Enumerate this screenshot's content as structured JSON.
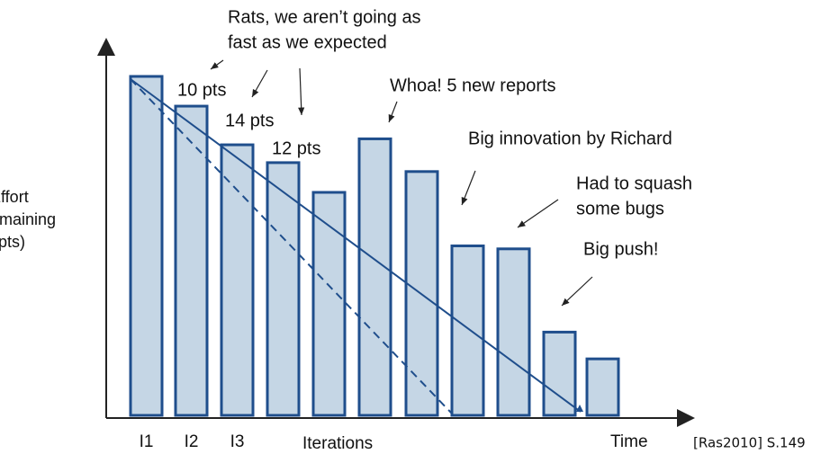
{
  "chart_data": {
    "type": "bar",
    "categories": [
      "I1",
      "I2",
      "I3",
      null,
      null,
      null,
      null,
      null,
      null,
      null,
      null
    ],
    "values": [
      114,
      104,
      91,
      85,
      75,
      93,
      82,
      57,
      56,
      28,
      19
    ],
    "color": "#c5d6e5",
    "ylim": [
      0,
      127
    ],
    "xlabel": "Iterations",
    "xlabel2": "Time",
    "ylabel": [
      "Effort",
      "remaining",
      "(pts)"
    ],
    "annotations": [
      [
        "Rats, we aren’t going as",
        "fast as we expected"
      ],
      [
        "10 pts"
      ],
      [
        "14 pts"
      ],
      [
        "12 pts"
      ],
      [
        "Whoa! 5 new reports"
      ],
      [
        "Big innovation by Richard"
      ],
      [
        "Had to squash",
        "some bugs"
      ],
      [
        "Big push!"
      ]
    ],
    "source": "[Ras2010]   S.149"
  }
}
